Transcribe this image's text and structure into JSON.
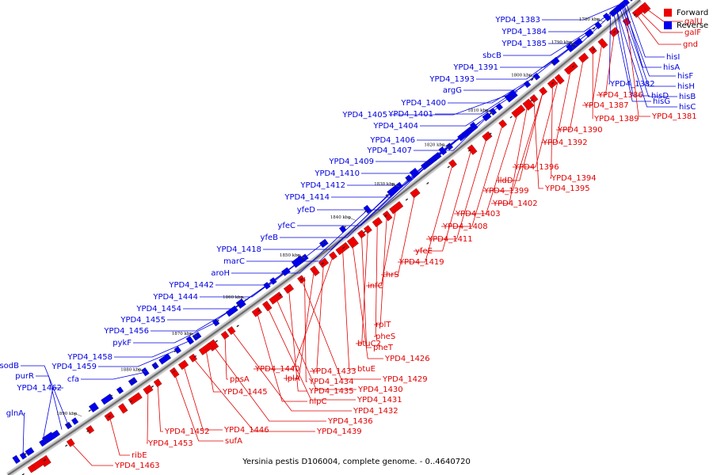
{
  "legend": [
    {
      "label": "Forward",
      "color": "#ee0000"
    },
    {
      "label": "Reverse",
      "color": "#0000ee"
    }
  ],
  "caption": "Yersinia pestis D106004, complete genome. - 0..4640720",
  "colors": {
    "forward": "#ee0000",
    "reverse": "#0000ee",
    "backbone": "#999999"
  },
  "ticks": [
    "1780 kbp",
    "1790 kbp",
    "1800 kbp",
    "1810 kbp",
    "1820 kbp",
    "1830 kbp",
    "1840 kbp",
    "1850 kbp",
    "1860 kbp",
    "1870 kbp",
    "1880 kbp",
    "1890 kbp"
  ],
  "reverse_genes": [
    "YPD4_1383",
    "YPD4_1384",
    "YPD4_1385",
    "sbcB",
    "YPD4_1391",
    "YPD4_1393",
    "argG",
    "YPD4_1400",
    "YPD4_1401",
    "YPD4_1405",
    "YPD4_1404",
    "YPD4_1406",
    "YPD4_1407",
    "YPD4_1409",
    "YPD4_1410",
    "YPD4_1412",
    "YPD4_1414",
    "yfeD",
    "yfeC",
    "yfeB",
    "YPD4_1418",
    "marC",
    "aroH",
    "YPD4_1442",
    "YPD4_1444",
    "YPD4_1454",
    "YPD4_1455",
    "YPD4_1456",
    "pykF",
    "YPD4_1458",
    "YPD4_1459",
    "sodB",
    "purR",
    "cfa",
    "YPD4_1462",
    "glnA"
  ],
  "reverse_genes_right": [
    "hisI",
    "hisA",
    "hisF",
    "YPD4_1382",
    "hisH",
    "hisD",
    "hisB",
    "hisG",
    "hisC"
  ],
  "forward_genes": [
    "galU",
    "galF",
    "gnd",
    "YPD4_1386",
    "YPD4_1381",
    "YPD4_1387",
    "YPD4_1389",
    "YPD4_1390",
    "YPD4_1392",
    "YPD4_1396",
    "YPD4_1394",
    "lldD",
    "YPD4_1395",
    "YPD4_1399",
    "YPD4_1402",
    "YPD4_1403",
    "YPD4_1408",
    "YPD4_1411",
    "yfeE",
    "YPD4_1419",
    "thrS",
    "infC",
    "rplT",
    "pheS",
    "btuC2",
    "pheT",
    "YPD4_1426",
    "btuE",
    "YPD4_1440",
    "YPD4_1433",
    "lplA",
    "YPD4_1434",
    "YPD4_1429",
    "YPD4_1435",
    "YPD4_1430",
    "YPD4_1431",
    "nlpC",
    "YPD4_1432",
    "ppsA",
    "YPD4_1445",
    "YPD4_1436",
    "YPD4_1439",
    "YPD4_1446",
    "sufA",
    "YPD4_1452",
    "YPD4_1453",
    "ribE",
    "YPD4_1463"
  ]
}
